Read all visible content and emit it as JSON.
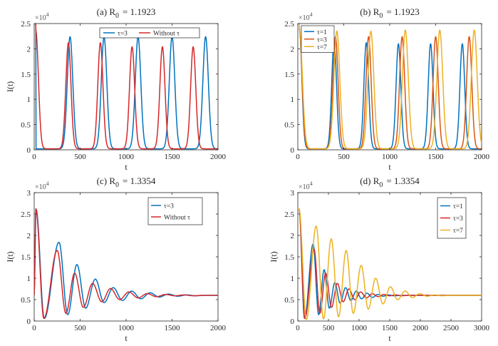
{
  "figure": {
    "background": "#ffffff"
  },
  "chart_data": [
    {
      "id": "a",
      "type": "line",
      "title": "(a) R",
      "title_subscript": "0",
      "title_value": "= 1.1923",
      "xlabel": "t",
      "ylabel": "I(t)",
      "xlim": [
        0,
        2000
      ],
      "ylim": [
        0,
        2.5
      ],
      "y_multiplier": "×10",
      "y_multiplier_exp": "4",
      "xticks": [
        0,
        500,
        1000,
        1500,
        2000
      ],
      "yticks": [
        0,
        0.5,
        1,
        1.5,
        2,
        2.5
      ],
      "xtick_labels": [
        "0",
        "500",
        "1000",
        "1500",
        "2000"
      ],
      "ytick_labels": [
        "0",
        "0.5",
        "1",
        "1.5",
        "2",
        "2.5"
      ],
      "legend": {
        "placement": "top-right",
        "orientation": "horizontal"
      },
      "series": [
        {
          "name": "τ=3",
          "color": "#0072BD",
          "model": "peaks",
          "baseline": 0.02,
          "width": 30,
          "start": 6,
          "peaks": [
            [
              390,
              2.22
            ],
            [
              760,
              2.22
            ],
            [
              1130,
              2.22
            ],
            [
              1500,
              2.22
            ],
            [
              1865,
              2.22
            ]
          ]
        },
        {
          "name": "Without τ",
          "color": "#D62728",
          "model": "peaks",
          "baseline": 0.02,
          "width": 28,
          "start": 6,
          "peaks": [
            [
              18,
              2.33
            ],
            [
              372,
              2.1
            ],
            [
              720,
              2.1
            ],
            [
              1065,
              2.02
            ],
            [
              1395,
              2.02
            ],
            [
              1730,
              2.02
            ]
          ]
        }
      ]
    },
    {
      "id": "b",
      "type": "line",
      "title": "(b) R",
      "title_subscript": "0",
      "title_value": "= 1.1923",
      "xlabel": "t",
      "ylabel": "",
      "xlim": [
        0,
        2000
      ],
      "ylim": [
        0,
        2.5
      ],
      "y_multiplier": "×10",
      "y_multiplier_exp": "4",
      "xticks": [
        0,
        500,
        1000,
        1500,
        2000
      ],
      "yticks": [
        0,
        0.5,
        1,
        1.5,
        2,
        2.5
      ],
      "xtick_labels": [
        "0",
        "500",
        "1000",
        "1500",
        "2000"
      ],
      "ytick_labels": [
        "0",
        "0.5",
        "1",
        "1.5",
        "2",
        "2.5"
      ],
      "legend": {
        "placement": "top-left",
        "orientation": "vertical"
      },
      "series": [
        {
          "name": "τ=1",
          "color": "#0072BD",
          "model": "peaks",
          "baseline": 0.02,
          "width": 26,
          "start": 6,
          "peaks": [
            [
              18,
              2.35
            ],
            [
              395,
              2.15
            ],
            [
              745,
              2.1
            ],
            [
              1095,
              2.08
            ],
            [
              1445,
              2.08
            ],
            [
              1790,
              2.08
            ]
          ]
        },
        {
          "name": "τ=3",
          "color": "#D95319",
          "model": "peaks",
          "baseline": 0.02,
          "width": 28,
          "start": 6,
          "peaks": [
            [
              18,
              2.35
            ],
            [
              410,
              2.22
            ],
            [
              770,
              2.22
            ],
            [
              1135,
              2.22
            ],
            [
              1500,
              2.22
            ],
            [
              1865,
              2.22
            ]
          ]
        },
        {
          "name": "τ=7",
          "color": "#EDB120",
          "model": "peaks",
          "baseline": 0.02,
          "width": 32,
          "start": 6,
          "peaks": [
            [
              18,
              2.35
            ],
            [
              425,
              2.33
            ],
            [
              795,
              2.33
            ],
            [
              1170,
              2.35
            ],
            [
              1545,
              2.35
            ],
            [
              1920,
              2.35
            ]
          ]
        }
      ]
    },
    {
      "id": "c",
      "type": "line",
      "title": "(c) R",
      "title_subscript": "0",
      "title_value": "= 1.3354",
      "xlabel": "t",
      "ylabel": "I(t)",
      "xlim": [
        0,
        2000
      ],
      "ylim": [
        0,
        3
      ],
      "y_multiplier": "×10",
      "y_multiplier_exp": "4",
      "xticks": [
        0,
        500,
        1000,
        1500,
        2000
      ],
      "yticks": [
        0,
        0.5,
        1,
        1.5,
        2,
        2.5,
        3
      ],
      "xtick_labels": [
        "0",
        "500",
        "1000",
        "1500",
        "2000"
      ],
      "ytick_labels": [
        "0",
        "0.5",
        "1",
        "1.5",
        "2",
        "2.5",
        "3"
      ],
      "legend": {
        "placement": "top-right",
        "orientation": "vertical"
      },
      "series": [
        {
          "name": "τ=3",
          "color": "#0072BD",
          "model": "damped",
          "equilibrium": 0.6,
          "start": 0.6,
          "points": [
            [
              20,
              2.62
            ],
            [
              110,
              0.06
            ],
            [
              270,
              1.84
            ],
            [
              365,
              0.15
            ],
            [
              465,
              1.32
            ],
            [
              560,
              0.3
            ],
            [
              665,
              0.98
            ],
            [
              760,
              0.43
            ],
            [
              860,
              0.78
            ],
            [
              960,
              0.48
            ],
            [
              1060,
              0.7
            ],
            [
              1160,
              0.52
            ],
            [
              1260,
              0.66
            ],
            [
              1360,
              0.56
            ],
            [
              1460,
              0.63
            ],
            [
              1560,
              0.58
            ],
            [
              1660,
              0.61
            ],
            [
              1760,
              0.59
            ],
            [
              1860,
              0.6
            ],
            [
              2000,
              0.6
            ]
          ]
        },
        {
          "name": "Without τ",
          "color": "#D62728",
          "model": "damped",
          "equilibrium": 0.6,
          "start": 0.6,
          "points": [
            [
              18,
              2.62
            ],
            [
              105,
              0.06
            ],
            [
              250,
              1.65
            ],
            [
              345,
              0.18
            ],
            [
              440,
              1.12
            ],
            [
              535,
              0.32
            ],
            [
              635,
              0.88
            ],
            [
              735,
              0.45
            ],
            [
              830,
              0.76
            ],
            [
              930,
              0.5
            ],
            [
              1030,
              0.68
            ],
            [
              1130,
              0.54
            ],
            [
              1230,
              0.64
            ],
            [
              1330,
              0.57
            ],
            [
              1430,
              0.62
            ],
            [
              1530,
              0.59
            ],
            [
              1630,
              0.61
            ],
            [
              1730,
              0.59
            ],
            [
              1830,
              0.6
            ],
            [
              2000,
              0.6
            ]
          ]
        }
      ]
    },
    {
      "id": "d",
      "type": "line",
      "title": "(d) R",
      "title_subscript": "0",
      "title_value": "= 1.3354",
      "xlabel": "t",
      "ylabel": "I(t)",
      "xlim": [
        0,
        3000
      ],
      "ylim": [
        0,
        3
      ],
      "y_multiplier": "×10",
      "y_multiplier_exp": "4",
      "xticks": [
        0,
        500,
        1000,
        1500,
        2000,
        2500,
        3000
      ],
      "yticks": [
        0,
        0.5,
        1,
        1.5,
        2,
        2.5,
        3
      ],
      "xtick_labels": [
        "0",
        "500",
        "1000",
        "1500",
        "2000",
        "2500",
        "3000"
      ],
      "ytick_labels": [
        "0",
        "0.5",
        "1",
        "1.5",
        "2",
        "2.5",
        "3"
      ],
      "legend": {
        "placement": "top-right",
        "orientation": "vertical"
      },
      "series": [
        {
          "name": "τ=1",
          "color": "#0072BD",
          "model": "damped",
          "equilibrium": 0.6,
          "start": 2.62,
          "points": [
            [
              20,
              2.62
            ],
            [
              110,
              0.06
            ],
            [
              250,
              1.8
            ],
            [
              340,
              0.15
            ],
            [
              430,
              1.2
            ],
            [
              515,
              0.3
            ],
            [
              605,
              0.9
            ],
            [
              690,
              0.42
            ],
            [
              780,
              0.78
            ],
            [
              865,
              0.48
            ],
            [
              955,
              0.7
            ],
            [
              1040,
              0.52
            ],
            [
              1130,
              0.65
            ],
            [
              1215,
              0.55
            ],
            [
              1305,
              0.62
            ],
            [
              1390,
              0.58
            ],
            [
              1480,
              0.61
            ],
            [
              1565,
              0.59
            ],
            [
              1700,
              0.6
            ],
            [
              3000,
              0.6
            ]
          ]
        },
        {
          "name": "τ=3",
          "color": "#D62728",
          "model": "damped",
          "equilibrium": 0.6,
          "start": 2.62,
          "points": [
            [
              20,
              2.62
            ],
            [
              115,
              0.06
            ],
            [
              265,
              1.68
            ],
            [
              360,
              0.18
            ],
            [
              455,
              1.12
            ],
            [
              550,
              0.32
            ],
            [
              645,
              0.88
            ],
            [
              740,
              0.45
            ],
            [
              835,
              0.75
            ],
            [
              930,
              0.5
            ],
            [
              1025,
              0.68
            ],
            [
              1120,
              0.54
            ],
            [
              1215,
              0.64
            ],
            [
              1310,
              0.57
            ],
            [
              1405,
              0.62
            ],
            [
              1500,
              0.59
            ],
            [
              1595,
              0.61
            ],
            [
              1690,
              0.59
            ],
            [
              1800,
              0.6
            ],
            [
              3000,
              0.6
            ]
          ]
        },
        {
          "name": "τ=7",
          "color": "#EDB120",
          "model": "damped",
          "equilibrium": 0.6,
          "start": 2.62,
          "points": [
            [
              20,
              2.62
            ],
            [
              140,
              0.03
            ],
            [
              300,
              2.22
            ],
            [
              420,
              0.05
            ],
            [
              545,
              1.92
            ],
            [
              665,
              0.1
            ],
            [
              790,
              1.65
            ],
            [
              905,
              0.18
            ],
            [
              1035,
              1.3
            ],
            [
              1150,
              0.28
            ],
            [
              1270,
              1.0
            ],
            [
              1390,
              0.4
            ],
            [
              1510,
              0.8
            ],
            [
              1630,
              0.5
            ],
            [
              1750,
              0.7
            ],
            [
              1870,
              0.55
            ],
            [
              1990,
              0.64
            ],
            [
              2110,
              0.58
            ],
            [
              2230,
              0.61
            ],
            [
              2350,
              0.59
            ],
            [
              2500,
              0.6
            ],
            [
              3000,
              0.6
            ]
          ]
        }
      ]
    }
  ]
}
